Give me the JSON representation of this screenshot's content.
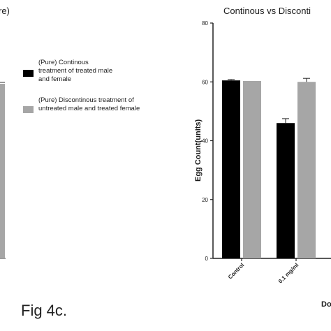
{
  "left_chart": {
    "title_fragment": "re)"
  },
  "legend": {
    "items": [
      {
        "label": "(Pure) Continous treatment of treated male and female",
        "color": "#000000"
      },
      {
        "label": "(Pure) Discontinous treatment of untreated male and treated female",
        "color": "#a6a6a6"
      }
    ]
  },
  "figure_label": "Fig 4c.",
  "chart_data": {
    "type": "bar",
    "title": "Continous vs Disconti",
    "ylabel": "Egg Count(units)",
    "xlabel_fragment": "Do",
    "ylim": [
      0,
      80
    ],
    "yticks": [
      0,
      20,
      40,
      60,
      80
    ],
    "categories": [
      "Control",
      "0.1 mg/ml"
    ],
    "series": [
      {
        "color": "#000000",
        "values": [
          60.5,
          46
        ],
        "errors": [
          0.3,
          1.5
        ]
      },
      {
        "color": "#a6a6a6",
        "values": [
          60.3,
          60
        ],
        "errors": [
          0,
          1.2
        ]
      }
    ],
    "grid": false,
    "legend_position": "left"
  }
}
